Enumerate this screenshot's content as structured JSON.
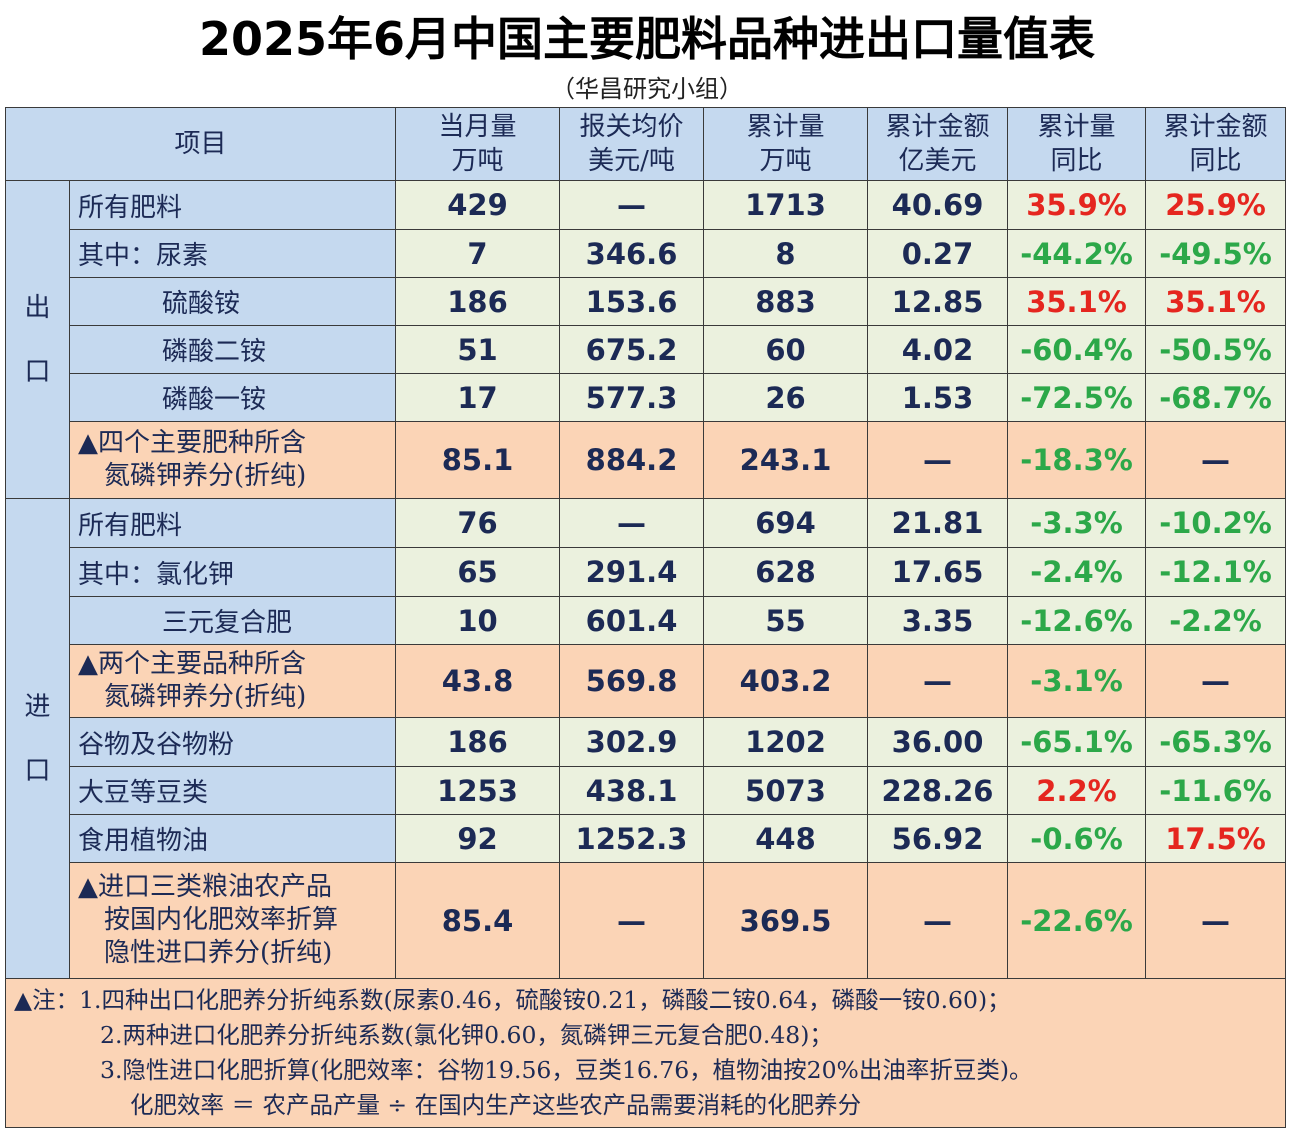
{
  "title": "2025年6月中国主要肥料品种进出口量值表",
  "subtitle": "（华昌研究小组）",
  "header": {
    "item": "项目",
    "cols": [
      {
        "line1": "当月量",
        "line2": "万吨"
      },
      {
        "line1": "报关均价",
        "line2": "美元/吨"
      },
      {
        "line1": "累计量",
        "line2": "万吨"
      },
      {
        "line1": "累计金额",
        "line2": "亿美元"
      },
      {
        "line1": "累计量",
        "line2": "同比"
      },
      {
        "line1": "累计金额",
        "line2": "同比"
      }
    ]
  },
  "groups": {
    "export": {
      "c1": "出",
      "c2": "口"
    },
    "import": {
      "c1": "进",
      "c2": "口"
    }
  },
  "export_rows": [
    {
      "label": "所有肥料",
      "v": [
        "429",
        "—",
        "1713",
        "40.69",
        "35.9%",
        "25.9%"
      ]
    },
    {
      "label": "其中：尿素",
      "v": [
        "7",
        "346.6",
        "8",
        "0.27",
        "-44.2%",
        "-49.5%"
      ]
    },
    {
      "label": "硫酸铵",
      "v": [
        "186",
        "153.6",
        "883",
        "12.85",
        "35.1%",
        "35.1%"
      ]
    },
    {
      "label": "磷酸二铵",
      "v": [
        "51",
        "675.2",
        "60",
        "4.02",
        "-60.4%",
        "-50.5%"
      ]
    },
    {
      "label": "磷酸一铵",
      "v": [
        "17",
        "577.3",
        "26",
        "1.53",
        "-72.5%",
        "-68.7%"
      ]
    },
    {
      "label1": "▲四个主要肥种所含",
      "label2": "氮磷钾养分(折纯)",
      "v": [
        "85.1",
        "884.2",
        "243.1",
        "—",
        "-18.3%",
        "—"
      ]
    }
  ],
  "import_rows": [
    {
      "label": "所有肥料",
      "v": [
        "76",
        "—",
        "694",
        "21.81",
        "-3.3%",
        "-10.2%"
      ]
    },
    {
      "label": "其中：氯化钾",
      "v": [
        "65",
        "291.4",
        "628",
        "17.65",
        "-2.4%",
        "-12.1%"
      ]
    },
    {
      "label": "三元复合肥",
      "v": [
        "10",
        "601.4",
        "55",
        "3.35",
        "-12.6%",
        "-2.2%"
      ]
    },
    {
      "label1": "▲两个主要品种所含",
      "label2": "氮磷钾养分(折纯)",
      "v": [
        "43.8",
        "569.8",
        "403.2",
        "—",
        "-3.1%",
        "—"
      ]
    },
    {
      "label": "谷物及谷物粉",
      "v": [
        "186",
        "302.9",
        "1202",
        "36.00",
        "-65.1%",
        "-65.3%"
      ]
    },
    {
      "label": "大豆等豆类",
      "v": [
        "1253",
        "438.1",
        "5073",
        "228.26",
        "2.2%",
        "-11.6%"
      ]
    },
    {
      "label": "食用植物油",
      "v": [
        "92",
        "1252.3",
        "448",
        "56.92",
        "-0.6%",
        "17.5%"
      ]
    },
    {
      "label1": "▲进口三类粮油农产品",
      "label2": "按国内化肥效率折算",
      "label3": "隐性进口养分(折纯)",
      "v": [
        "85.4",
        "—",
        "369.5",
        "—",
        "-22.6%",
        "—"
      ]
    }
  ],
  "notes": {
    "n1": "▲注：1.四种出口化肥养分折纯系数(尿素0.46，硫酸铵0.21，磷酸二铵0.64，磷酸一铵0.60)；",
    "n2": "2.两种进口化肥养分折纯系数(氯化钾0.60，氮磷钾三元复合肥0.48)；",
    "n3": "3.隐性进口化肥折算(化肥效率：谷物19.56，豆类16.76，植物油按20%出油率折豆类)。",
    "n4": "化肥效率 ＝ 农产品产量 ÷ 在国内生产这些农产品需要消耗的化肥养分"
  },
  "colors": {
    "header_bg": "#c5d9ef",
    "value_bg": "#ebf1de",
    "highlight_bg": "#fbd4b6",
    "positive": "#e5261f",
    "negative": "#2ca849",
    "text": "#1c2a55"
  }
}
